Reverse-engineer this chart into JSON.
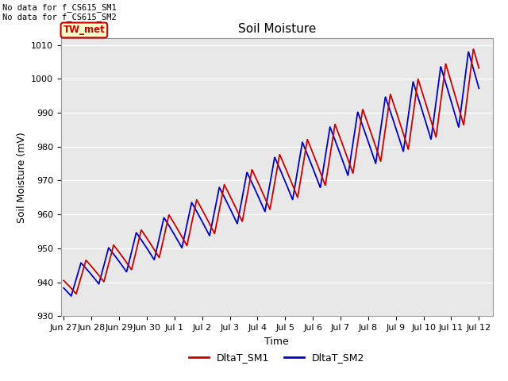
{
  "title": "Soil Moisture",
  "ylabel": "Soil Moisture (mV)",
  "xlabel": "Time",
  "ylim": [
    930,
    1012
  ],
  "yticks": [
    930,
    940,
    950,
    960,
    970,
    980,
    990,
    1000,
    1010
  ],
  "background_color": "#e8e8e8",
  "no_data_text": [
    "No data for f_CS615_SM1",
    "No data for f_CS615_SM2"
  ],
  "legend_label_box": "TW_met",
  "legend_entries": [
    "DltaT_SM1",
    "DltaT_SM2"
  ],
  "legend_colors": [
    "#cc0000",
    "#0000cc"
  ],
  "xtick_labels": [
    "Jun 27",
    "Jun 28",
    "Jun 29",
    "Jun 30",
    "Jul 1",
    "Jul 2",
    "Jul 3",
    "Jul 4",
    "Jul 5",
    "Jul 6",
    "Jul 7",
    "Jul 8",
    "Jul 9",
    "Jul 10",
    "Jul 11",
    "Jul 12"
  ],
  "line_width": 1.3,
  "title_fontsize": 11,
  "axis_label_fontsize": 9,
  "tick_fontsize": 8
}
